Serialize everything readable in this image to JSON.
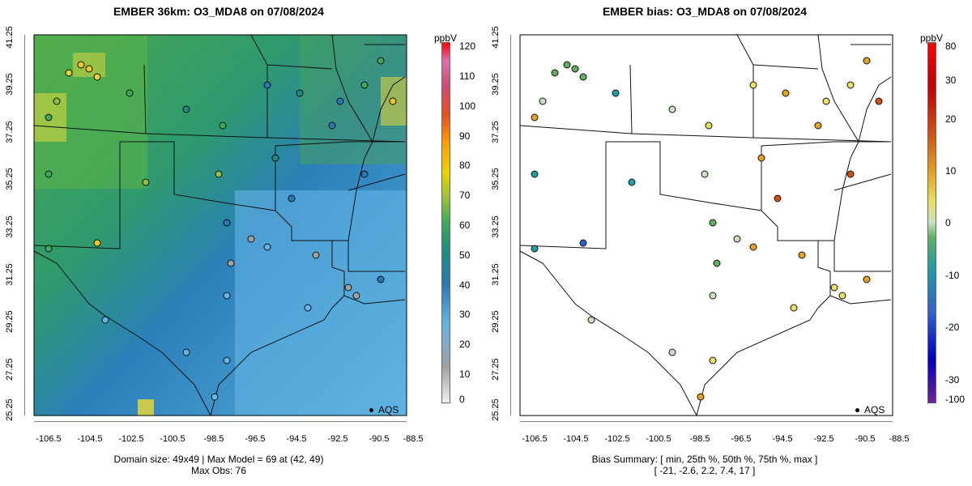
{
  "left": {
    "title": "EMBER 36km: O3_MDA8 on 07/08/2024",
    "caption_line1": "Domain size: 49x49 | Max Model = 69 at (42, 49)",
    "caption_line2": "Max Obs: 76",
    "colorbar_unit": "ppbV",
    "colorbar_ticks": [
      "120",
      "110",
      "100",
      "90",
      "80",
      "70",
      "60",
      "50",
      "40",
      "30",
      "20",
      "10",
      "0"
    ],
    "legend": "AQS"
  },
  "right": {
    "title": "EMBER bias: O3_MDA8 on 07/08/2024",
    "caption_line1": "Bias Summary: [ min, 25th %, 50th %, 75th %, max ]",
    "caption_line2": "[ -21,   -2.6,   2.2,   7.4,   17 ]",
    "colorbar_unit": "ppbV",
    "colorbar_ticks": [
      "80",
      "30",
      "20",
      "10",
      "0",
      "-10",
      "-20",
      "-30",
      "-100"
    ],
    "legend": "AQS"
  },
  "axes": {
    "longitude_ticks": [
      "-106.5",
      "-104.5",
      "-102.5",
      "-100.5",
      "-98.5",
      "-96.5",
      "-94.5",
      "-92.5",
      "-90.5",
      "-88.5"
    ],
    "latitude_ticks": [
      "41.25",
      "39.25",
      "37.25",
      "35.25",
      "33.25",
      "31.25",
      "29.25",
      "27.25",
      "25.25"
    ]
  },
  "colors": {
    "left_scale": [
      "#f0f0f0",
      "#a0a0a0",
      "#64b4e6",
      "#2a78b4",
      "#1e8c82",
      "#3ca85a",
      "#8cc040",
      "#f0d200",
      "#ffa000",
      "#e85020",
      "#d04a70",
      "#e070b0",
      "#ff0000"
    ],
    "right_scale": [
      "#7020a0",
      "#0000c0",
      "#3060d0",
      "#20a0a0",
      "#60b060",
      "#c8e0c0",
      "#e8e060",
      "#e8a020",
      "#d05010",
      "#c00000",
      "#ff0000"
    ]
  },
  "summary": {
    "bias_min": -21,
    "bias_p25": -2.6,
    "bias_median": 2.2,
    "bias_p75": 7.4,
    "bias_max": 17,
    "max_model": 69,
    "max_obs": 76,
    "domain_size": "49x49"
  }
}
